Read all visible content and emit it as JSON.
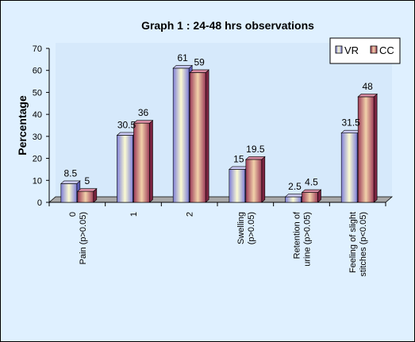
{
  "chart_data": {
    "type": "bar",
    "title": "Graph 1 : 24-48 hrs observations",
    "ylabel": "Percentage",
    "xlabel": "",
    "ylim": [
      0,
      70
    ],
    "yticks": [
      "0",
      "10",
      "20",
      "30",
      "40",
      "50",
      "60",
      "70"
    ],
    "categories": [
      [
        "0",
        "Pain (p>0.05)"
      ],
      [
        "1"
      ],
      [
        "2"
      ],
      [
        "Swelling",
        "(p>0.05)"
      ],
      [
        "Retention of",
        "urine (p>0.05)"
      ],
      [
        "Feeling of slight",
        "stitches (p<0.05)"
      ]
    ],
    "series": [
      {
        "name": "VR",
        "values": [
          8.5,
          30.5,
          61,
          15,
          2.5,
          31.5
        ],
        "labels": [
          "8.5",
          "30.5",
          "61",
          "15",
          "2.5",
          "31.5"
        ],
        "color": "#9a9ae6"
      },
      {
        "name": "CC",
        "values": [
          5,
          36,
          59,
          19.5,
          4.5,
          48
        ],
        "labels": [
          "5",
          "36",
          "59",
          "19.5",
          "4.5",
          "48"
        ],
        "color": "#b85a74"
      }
    ],
    "legend_position": "top-right",
    "grid": false
  }
}
